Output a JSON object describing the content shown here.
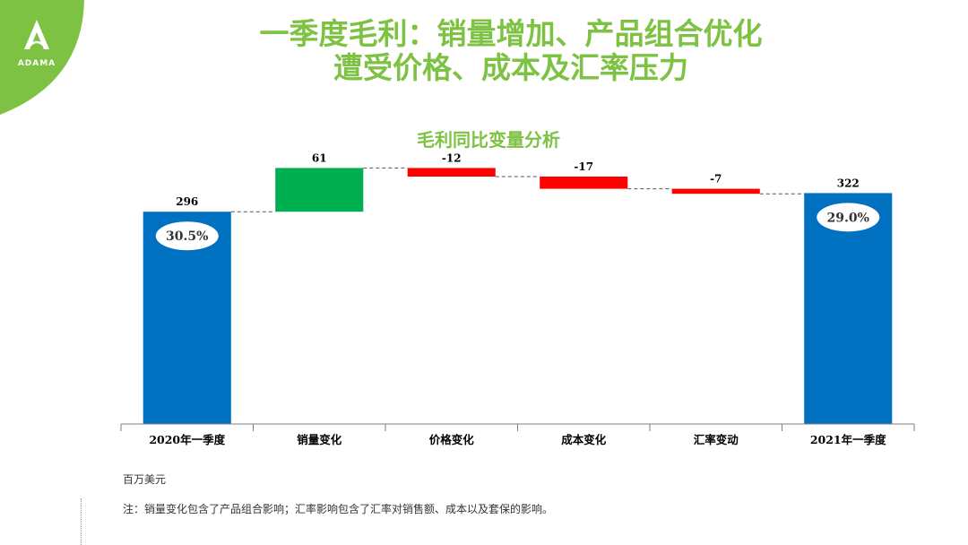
{
  "brand": {
    "logo_text": "ADAMA",
    "accent": "#7dc242"
  },
  "header": {
    "title_line1": "一季度毛利：销量增加、产品组合优化",
    "title_line2": "遭受价格、成本及汇率压力"
  },
  "footer": {
    "unit": "百万美元",
    "note": "注：销量变化包含了产品组合影响；汇率影响包含了汇率对销售额、成本以及套保的影响。"
  },
  "chart_data": {
    "type": "bar",
    "title": "毛利同比变量分析",
    "categories": [
      "2020年一季度",
      "销量变化",
      "价格变化",
      "成本变化",
      "汇率变动",
      "2021年一季度"
    ],
    "values": [
      296,
      61,
      -12,
      -17,
      -7,
      322
    ],
    "value_labels": [
      "296",
      "61",
      "-12",
      "-17",
      "-7",
      "322"
    ],
    "kinds": [
      "total",
      "increase",
      "decrease",
      "decrease",
      "decrease",
      "total"
    ],
    "margin_labels": [
      {
        "category": "2020年一季度",
        "label": "30.5%"
      },
      {
        "category": "2021年一季度",
        "label": "29.0%"
      }
    ],
    "colors": {
      "total": "#0070c0",
      "increase": "#00b050",
      "decrease": "#ff0000"
    },
    "xlabel": "",
    "ylabel": "",
    "ylim": [
      0,
      360
    ],
    "grid": false,
    "legend": "none"
  }
}
